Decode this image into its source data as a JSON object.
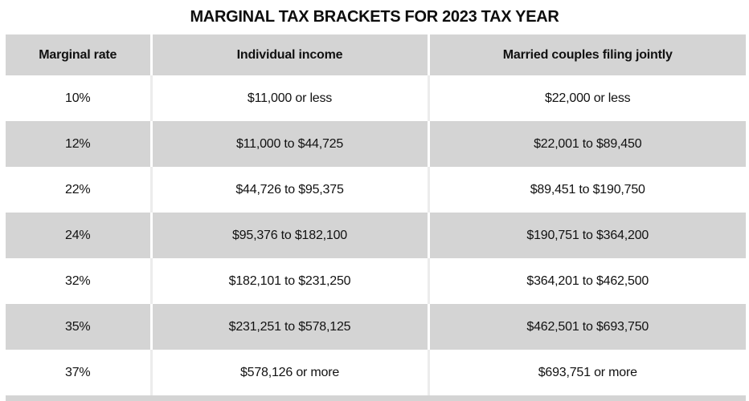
{
  "title": "MARGINAL TAX BRACKETS FOR 2023 TAX YEAR",
  "colors": {
    "row_shade": "#d4d4d4",
    "background": "#ffffff",
    "text": "#111111"
  },
  "table": {
    "columns": [
      "Marginal rate",
      "Individual income",
      "Married couples filing jointly"
    ],
    "rows": [
      [
        "10%",
        "$11,000 or less",
        "$22,000 or less"
      ],
      [
        "12%",
        "$11,000 to $44,725",
        "$22,001 to $89,450"
      ],
      [
        "22%",
        "$44,726 to $95,375",
        "$89,451 to $190,750"
      ],
      [
        "24%",
        "$95,376 to $182,100",
        "$190,751 to $364,200"
      ],
      [
        "32%",
        "$182,101 to $231,250",
        "$364,201 to $462,500"
      ],
      [
        "35%",
        "$231,251 to $578,125",
        "$462,501 to $693,750"
      ],
      [
        "37%",
        "$578,126 or more",
        "$693,751 or more"
      ]
    ]
  },
  "chart_data": {
    "type": "table",
    "title": "MARGINAL TAX BRACKETS FOR 2023 TAX YEAR",
    "columns": [
      "Marginal rate",
      "Individual income",
      "Married couples filing jointly"
    ],
    "rows": [
      [
        "10%",
        "$11,000 or less",
        "$22,000 or less"
      ],
      [
        "12%",
        "$11,000 to $44,725",
        "$22,001 to $89,450"
      ],
      [
        "22%",
        "$44,726 to $95,375",
        "$89,451 to $190,750"
      ],
      [
        "24%",
        "$95,376 to $182,100",
        "$190,751 to $364,200"
      ],
      [
        "32%",
        "$182,101 to $231,250",
        "$364,201 to $462,500"
      ],
      [
        "35%",
        "$231,251 to $578,125",
        "$462,501 to $693,750"
      ],
      [
        "37%",
        "$578,126 or more",
        "$693,751 or more"
      ]
    ],
    "layout_hints": {
      "row_striping": "alternating white and gray starting with white",
      "alignment": "center"
    }
  }
}
